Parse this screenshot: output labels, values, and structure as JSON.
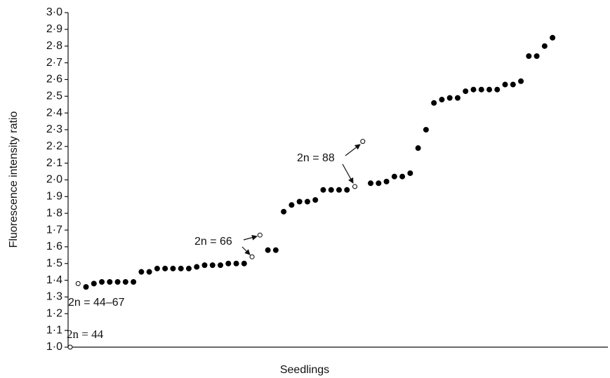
{
  "chart_data": {
    "type": "scatter",
    "y_label": "Fluorescence intensity ratio",
    "x_label": "Seedlings",
    "ylim": [
      1.0,
      3.0
    ],
    "yticks": [
      {
        "value": 1.0,
        "label": "1·0"
      },
      {
        "value": 1.1,
        "label": "1·1"
      },
      {
        "value": 1.2,
        "label": "1·2"
      },
      {
        "value": 1.3,
        "label": "1·3"
      },
      {
        "value": 1.4,
        "label": "1·4"
      },
      {
        "value": 1.5,
        "label": "1·5"
      },
      {
        "value": 1.6,
        "label": "1·6"
      },
      {
        "value": 1.7,
        "label": "1·7"
      },
      {
        "value": 1.8,
        "label": "1·8"
      },
      {
        "value": 1.9,
        "label": "1·9"
      },
      {
        "value": 2.0,
        "label": "2·0"
      },
      {
        "value": 2.1,
        "label": "2·1"
      },
      {
        "value": 2.2,
        "label": "2·2"
      },
      {
        "value": 2.3,
        "label": "2·3"
      },
      {
        "value": 2.4,
        "label": "2·4"
      },
      {
        "value": 2.5,
        "label": "2·5"
      },
      {
        "value": 2.6,
        "label": "2·6"
      },
      {
        "value": 2.7,
        "label": "2·7"
      },
      {
        "value": 2.8,
        "label": "2·8"
      },
      {
        "value": 2.9,
        "label": "2·9"
      },
      {
        "value": 3.0,
        "label": "3·0"
      }
    ],
    "xlim": [
      0,
      68
    ],
    "series": [
      {
        "marker": "open",
        "color": "#000000",
        "x": [
          0,
          1,
          23,
          24,
          36,
          37
        ],
        "values": [
          1.0,
          1.38,
          1.54,
          1.67,
          1.96,
          2.23
        ]
      },
      {
        "marker": "filled",
        "color": "#000000",
        "x": [
          2,
          3,
          4,
          5,
          6,
          7,
          8,
          9,
          10,
          11,
          12,
          13,
          14,
          15,
          16,
          17,
          18,
          19,
          20,
          21,
          22,
          25,
          26,
          27,
          28,
          29,
          30,
          31,
          32,
          33,
          34,
          35,
          38,
          39,
          40,
          41,
          42,
          43,
          44,
          45,
          46,
          47,
          48,
          49,
          50,
          51,
          52,
          53,
          54,
          55,
          56,
          57,
          58,
          59,
          60,
          61
        ],
        "values": [
          1.36,
          1.38,
          1.39,
          1.39,
          1.39,
          1.39,
          1.39,
          1.45,
          1.45,
          1.47,
          1.47,
          1.47,
          1.47,
          1.47,
          1.48,
          1.49,
          1.49,
          1.49,
          1.5,
          1.5,
          1.5,
          1.58,
          1.58,
          1.81,
          1.85,
          1.87,
          1.87,
          1.88,
          1.94,
          1.94,
          1.94,
          1.94,
          1.98,
          1.98,
          1.99,
          2.02,
          2.02,
          2.04,
          2.19,
          2.3,
          2.46,
          2.48,
          2.49,
          2.49,
          2.53,
          2.54,
          2.54,
          2.54,
          2.54,
          2.57,
          2.57,
          2.59,
          2.74,
          2.74,
          2.8,
          2.85
        ]
      }
    ],
    "annotations": [
      "2n = 44",
      "2n = 44–67",
      "2n = 66",
      "2n = 88"
    ]
  }
}
